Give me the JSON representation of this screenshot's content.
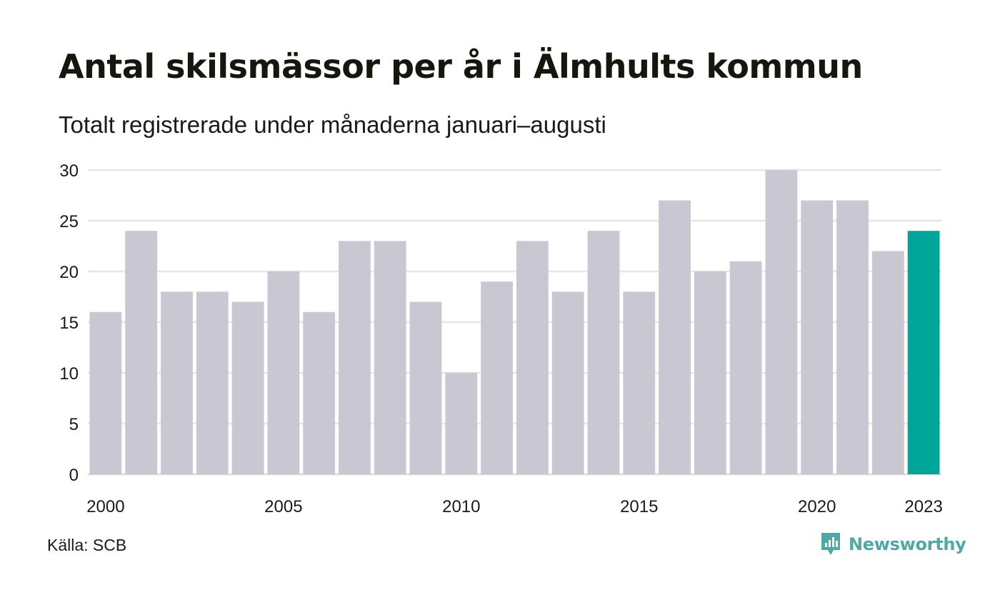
{
  "title": "Antal skilsmässor per år i Älmhults kommun",
  "subtitle": "Totalt registrerade under månaderna januari–augusti",
  "source": "Källa: SCB",
  "brand": {
    "name": "Newsworthy",
    "icon": "newsworthy-logo-icon",
    "color": "#4fa8a4"
  },
  "colors": {
    "bar": "#c8c7d2",
    "highlight": "#00a599",
    "grid": "#e6e6e6",
    "axis": "#d9d9d9"
  },
  "chart_data": {
    "type": "bar",
    "categories": [
      "2000",
      "2001",
      "2002",
      "2003",
      "2004",
      "2005",
      "2006",
      "2007",
      "2008",
      "2009",
      "2010",
      "2011",
      "2012",
      "2013",
      "2014",
      "2015",
      "2016",
      "2017",
      "2018",
      "2019",
      "2020",
      "2021",
      "2022",
      "2023"
    ],
    "values": [
      16,
      24,
      18,
      18,
      17,
      20,
      16,
      23,
      23,
      17,
      10,
      19,
      23,
      18,
      24,
      18,
      27,
      20,
      21,
      30,
      27,
      27,
      22,
      24
    ],
    "highlight_category": "2023",
    "x_tick_labels": [
      "2000",
      "2005",
      "2010",
      "2015",
      "2020",
      "2023"
    ],
    "y_ticks": [
      0,
      5,
      10,
      15,
      20,
      25,
      30
    ],
    "ylim": [
      0,
      30
    ],
    "grid": true,
    "title": "Antal skilsmässor per år i Älmhults kommun",
    "subtitle": "Totalt registrerade under månaderna januari–augusti"
  }
}
